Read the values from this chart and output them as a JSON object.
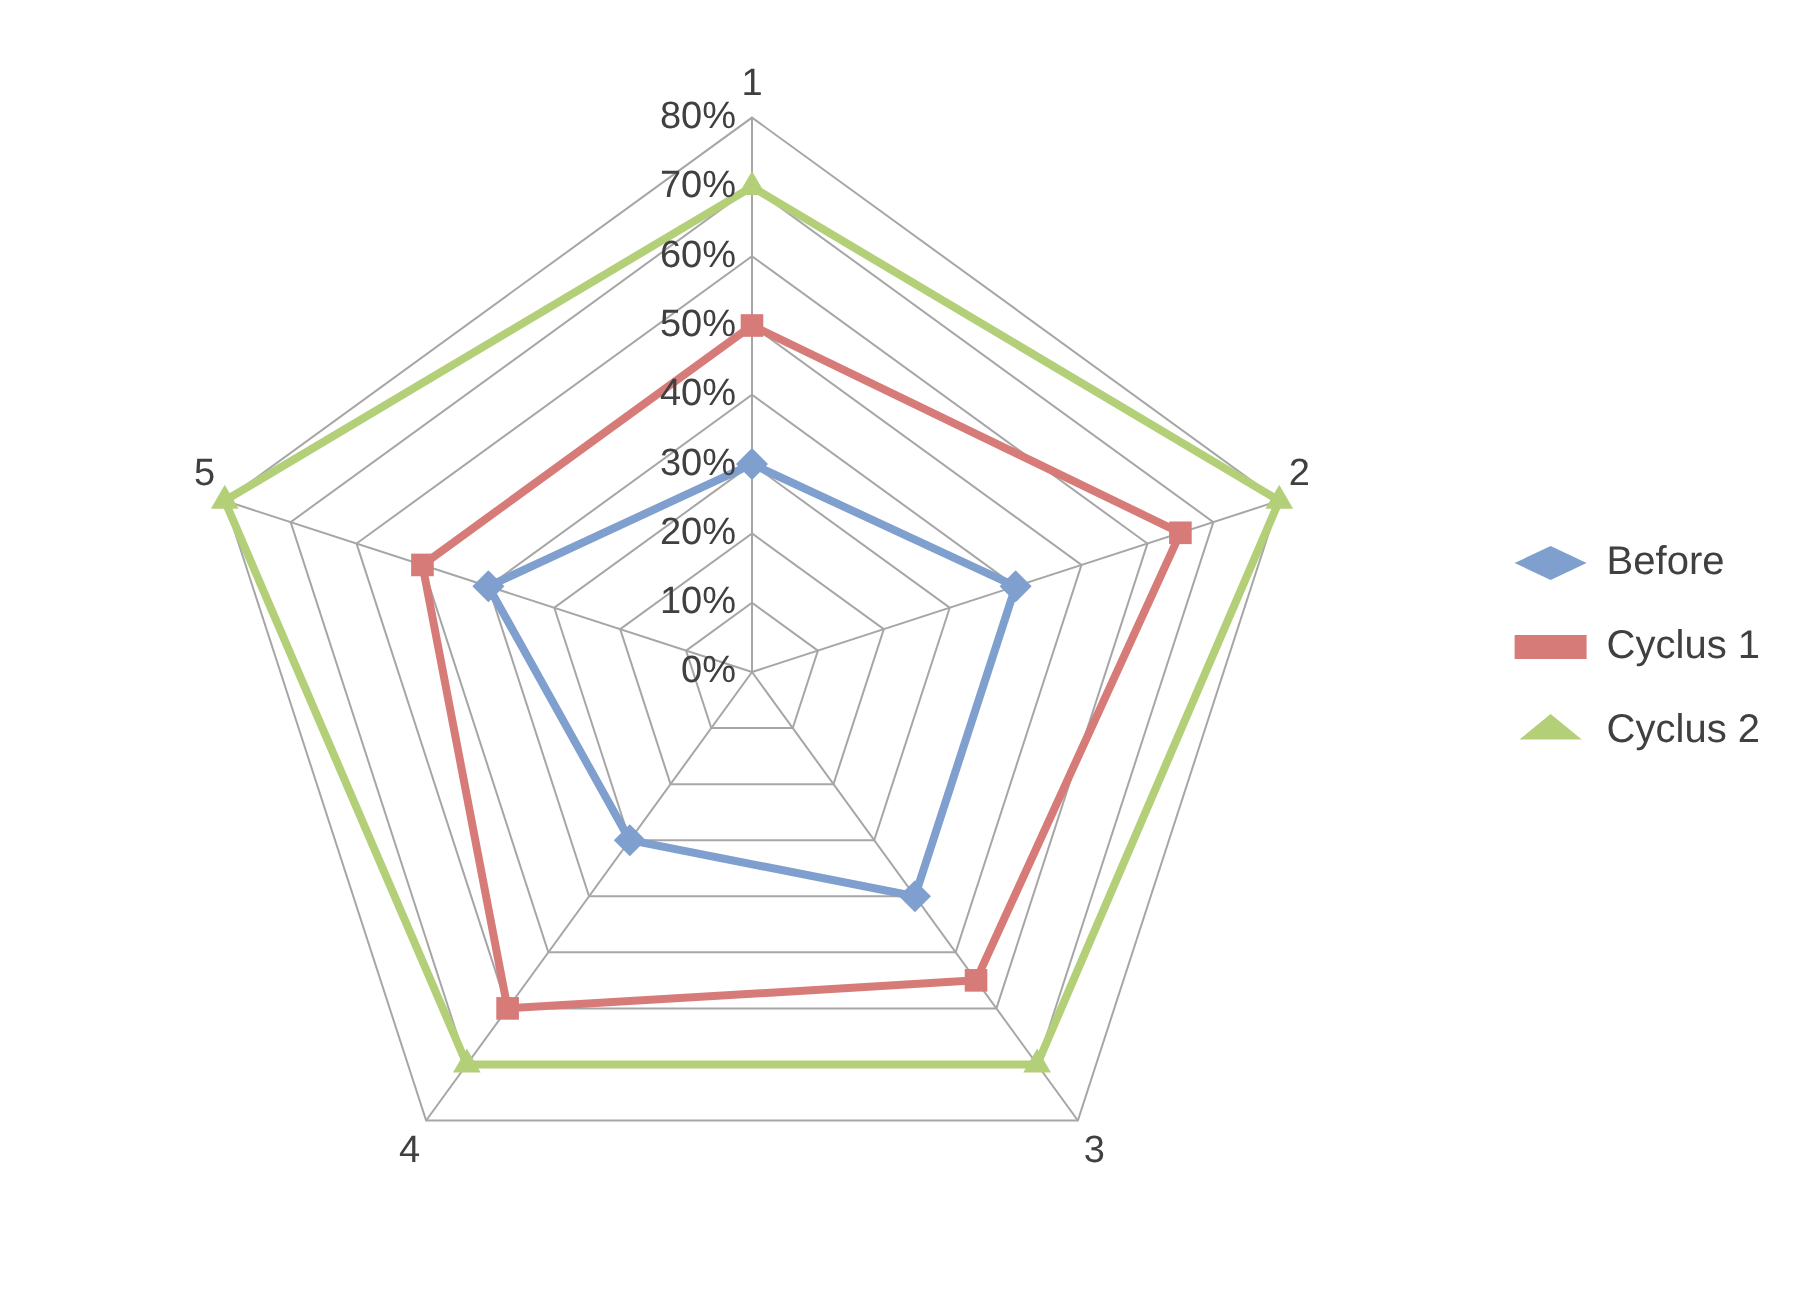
{
  "chart_data": {
    "type": "radar",
    "categories": [
      "1",
      "2",
      "3",
      "4",
      "5"
    ],
    "series": [
      {
        "name": "Before",
        "color": "#7f9fcf",
        "marker": "diamond",
        "values": [
          30,
          40,
          40,
          30,
          40
        ]
      },
      {
        "name": "Cyclus 1",
        "color": "#d77b79",
        "marker": "square",
        "values": [
          50,
          65,
          55,
          60,
          50
        ]
      },
      {
        "name": "Cyclus 2",
        "color": "#b3cf78",
        "marker": "triangle",
        "values": [
          70,
          80,
          70,
          70,
          80
        ]
      }
    ],
    "ylim": [
      0,
      80
    ],
    "yticks": [
      {
        "value": 0,
        "label": "0%"
      },
      {
        "value": 10,
        "label": "10%"
      },
      {
        "value": 20,
        "label": "20%"
      },
      {
        "value": 30,
        "label": "30%"
      },
      {
        "value": 40,
        "label": "40%"
      },
      {
        "value": 50,
        "label": "50%"
      },
      {
        "value": 60,
        "label": "60%"
      },
      {
        "value": 70,
        "label": "70%"
      },
      {
        "value": 80,
        "label": "80%"
      }
    ],
    "grid": true,
    "legend": "right"
  }
}
